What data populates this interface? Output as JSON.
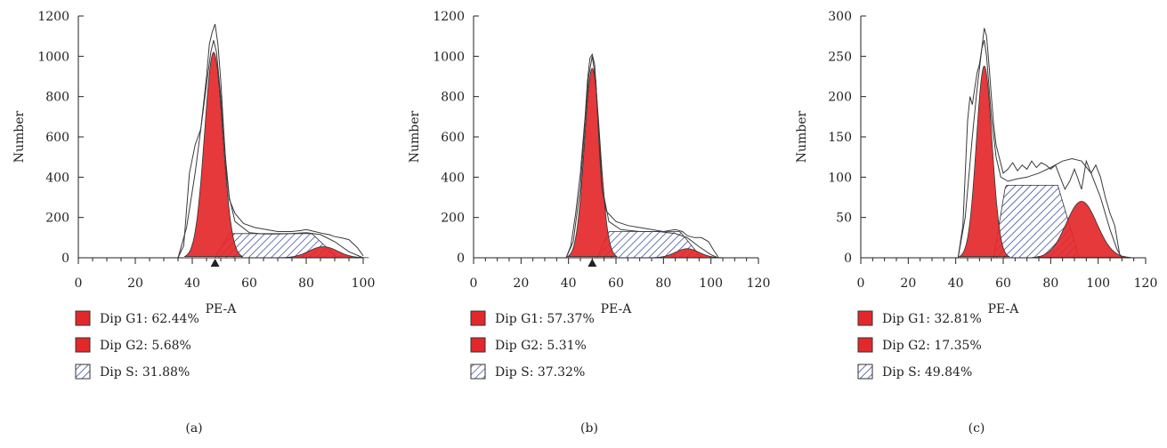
{
  "colors": {
    "g1": "#e3282b",
    "g2": "#e3282b",
    "s_hatch": "#1a2f8a",
    "curve": "#3a3a3a",
    "axis": "#222222"
  },
  "chart_data": [
    {
      "type": "area",
      "panel_label": "(a)",
      "xlabel": "PE-A",
      "ylabel": "Number",
      "xlim": [
        0,
        100
      ],
      "ylim": [
        0,
        1200
      ],
      "xticks": [
        0,
        20,
        40,
        60,
        80,
        100
      ],
      "yticks": [
        0,
        200,
        400,
        600,
        800,
        1000,
        1200
      ],
      "marker_x": 48,
      "legend": [
        {
          "label": "Dip G1: 62.44%",
          "swatch": "solid"
        },
        {
          "label": "Dip G2: 5.68%",
          "swatch": "solid"
        },
        {
          "label": "Dip S: 31.88%",
          "swatch": "hatch"
        }
      ],
      "g1": {
        "center": 47.5,
        "height": 1020,
        "sigma": 3.2
      },
      "g2": {
        "center": 86,
        "height": 55,
        "sigma": 5
      },
      "s": {
        "start": 48,
        "end": 91,
        "height": 120
      },
      "histogram": [
        [
          35,
          0
        ],
        [
          37,
          60
        ],
        [
          39,
          420
        ],
        [
          41,
          560
        ],
        [
          43,
          640
        ],
        [
          45,
          900
        ],
        [
          46,
          1060
        ],
        [
          47,
          1120
        ],
        [
          48,
          1160
        ],
        [
          49,
          1060
        ],
        [
          50,
          880
        ],
        [
          51,
          640
        ],
        [
          52,
          420
        ],
        [
          53,
          290
        ],
        [
          55,
          220
        ],
        [
          58,
          170
        ],
        [
          62,
          150
        ],
        [
          66,
          140
        ],
        [
          70,
          130
        ],
        [
          75,
          130
        ],
        [
          78,
          135
        ],
        [
          80,
          140
        ],
        [
          83,
          130
        ],
        [
          86,
          120
        ],
        [
          88,
          115
        ],
        [
          90,
          105
        ],
        [
          92,
          100
        ],
        [
          95,
          90
        ],
        [
          98,
          50
        ],
        [
          100,
          10
        ]
      ],
      "fit": [
        [
          35,
          0
        ],
        [
          38,
          150
        ],
        [
          41,
          420
        ],
        [
          43,
          640
        ],
        [
          45,
          860
        ],
        [
          46.5,
          1020
        ],
        [
          47.5,
          1080
        ],
        [
          48.5,
          1020
        ],
        [
          50,
          800
        ],
        [
          51.5,
          520
        ],
        [
          53,
          300
        ],
        [
          55,
          180
        ],
        [
          60,
          125
        ],
        [
          65,
          118
        ],
        [
          70,
          118
        ],
        [
          75,
          120
        ],
        [
          80,
          125
        ],
        [
          85,
          115
        ],
        [
          90,
          80
        ],
        [
          95,
          30
        ],
        [
          100,
          0
        ]
      ]
    },
    {
      "type": "area",
      "panel_label": "(b)",
      "xlabel": "PE-A",
      "ylabel": "Number",
      "xlim": [
        0,
        120
      ],
      "ylim": [
        0,
        1200
      ],
      "xticks": [
        0,
        20,
        40,
        60,
        80,
        100,
        120
      ],
      "yticks": [
        0,
        200,
        400,
        600,
        800,
        1000,
        1200
      ],
      "marker_x": 50,
      "legend": [
        {
          "label": "Dip G1: 57.37%",
          "swatch": "solid"
        },
        {
          "label": "Dip G2: 5.31%",
          "swatch": "solid"
        },
        {
          "label": "Dip S: 37.32%",
          "swatch": "hatch"
        }
      ],
      "g1": {
        "center": 50,
        "height": 940,
        "sigma": 3.3
      },
      "g2": {
        "center": 90,
        "height": 45,
        "sigma": 5
      },
      "s": {
        "start": 52,
        "end": 96,
        "height": 130
      },
      "histogram": [
        [
          39,
          0
        ],
        [
          41,
          60
        ],
        [
          43,
          220
        ],
        [
          45,
          420
        ],
        [
          47,
          700
        ],
        [
          48,
          880
        ],
        [
          49,
          990
        ],
        [
          50,
          1010
        ],
        [
          51,
          960
        ],
        [
          52,
          780
        ],
        [
          53,
          540
        ],
        [
          54,
          350
        ],
        [
          56,
          230
        ],
        [
          60,
          180
        ],
        [
          65,
          160
        ],
        [
          70,
          150
        ],
        [
          75,
          140
        ],
        [
          80,
          130
        ],
        [
          85,
          140
        ],
        [
          88,
          130
        ],
        [
          90,
          110
        ],
        [
          93,
          100
        ],
        [
          96,
          100
        ],
        [
          99,
          80
        ],
        [
          101,
          40
        ],
        [
          103,
          5
        ]
      ],
      "fit": [
        [
          39,
          0
        ],
        [
          42,
          80
        ],
        [
          45,
          350
        ],
        [
          47,
          680
        ],
        [
          48.5,
          900
        ],
        [
          50,
          1000
        ],
        [
          51.5,
          880
        ],
        [
          53,
          560
        ],
        [
          55,
          300
        ],
        [
          57,
          180
        ],
        [
          62,
          140
        ],
        [
          70,
          130
        ],
        [
          78,
          130
        ],
        [
          85,
          120
        ],
        [
          90,
          100
        ],
        [
          95,
          55
        ],
        [
          100,
          15
        ],
        [
          103,
          0
        ]
      ]
    },
    {
      "type": "area",
      "panel_label": "(c)",
      "xlabel": "PE-A",
      "ylabel": "Number",
      "xlim": [
        0,
        120
      ],
      "ylim": [
        0,
        300
      ],
      "xticks": [
        0,
        20,
        40,
        60,
        80,
        100,
        120
      ],
      "yticks": [
        0,
        50,
        100,
        150,
        200,
        250,
        300
      ],
      "legend": [
        {
          "label": "Dip G1: 32.81%",
          "swatch": "solid"
        },
        {
          "label": "Dip G2: 17.35%",
          "swatch": "solid"
        },
        {
          "label": "Dip S: 49.84%",
          "swatch": "hatch"
        }
      ],
      "g1": {
        "center": 52,
        "height": 238,
        "sigma": 3.3
      },
      "g2": {
        "center": 93,
        "height": 70,
        "sigma": 6.5
      },
      "s": {
        "start": 56,
        "end": 92,
        "height": 90
      },
      "histogram": [
        [
          41,
          0
        ],
        [
          43,
          40
        ],
        [
          45,
          170
        ],
        [
          46,
          200
        ],
        [
          47,
          190
        ],
        [
          48,
          210
        ],
        [
          49,
          230
        ],
        [
          50,
          240
        ],
        [
          51,
          260
        ],
        [
          52,
          285
        ],
        [
          53,
          275
        ],
        [
          54,
          240
        ],
        [
          55,
          200
        ],
        [
          56,
          165
        ],
        [
          57,
          140
        ],
        [
          58,
          128
        ],
        [
          60,
          105
        ],
        [
          62,
          110
        ],
        [
          64,
          118
        ],
        [
          66,
          108
        ],
        [
          68,
          115
        ],
        [
          70,
          110
        ],
        [
          72,
          120
        ],
        [
          74,
          112
        ],
        [
          76,
          118
        ],
        [
          78,
          115
        ],
        [
          80,
          110
        ],
        [
          82,
          115
        ],
        [
          84,
          100
        ],
        [
          86,
          85
        ],
        [
          88,
          95
        ],
        [
          90,
          110
        ],
        [
          91,
          102
        ],
        [
          93,
          85
        ],
        [
          95,
          120
        ],
        [
          97,
          105
        ],
        [
          99,
          115
        ],
        [
          101,
          100
        ],
        [
          103,
          75
        ],
        [
          105,
          55
        ],
        [
          107,
          40
        ],
        [
          109,
          5
        ]
      ],
      "fit": [
        [
          41,
          0
        ],
        [
          44,
          50
        ],
        [
          47,
          150
        ],
        [
          49,
          210
        ],
        [
          51,
          260
        ],
        [
          52,
          270
        ],
        [
          53,
          250
        ],
        [
          55,
          175
        ],
        [
          57,
          125
        ],
        [
          59,
          100
        ],
        [
          62,
          95
        ],
        [
          66,
          98
        ],
        [
          70,
          100
        ],
        [
          75,
          105
        ],
        [
          80,
          112
        ],
        [
          85,
          120
        ],
        [
          89,
          123
        ],
        [
          93,
          120
        ],
        [
          97,
          105
        ],
        [
          101,
          75
        ],
        [
          105,
          35
        ],
        [
          108,
          10
        ],
        [
          110,
          0
        ]
      ]
    }
  ]
}
